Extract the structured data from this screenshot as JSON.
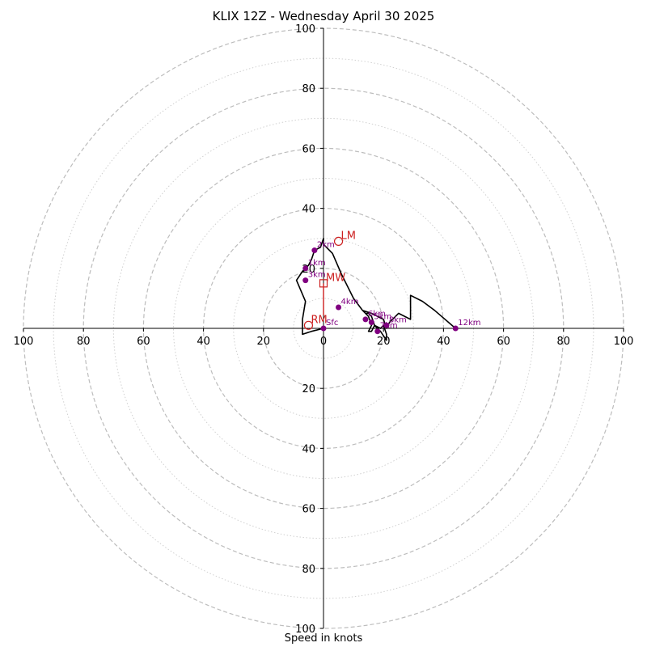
{
  "chart_data": {
    "type": "scatter",
    "title": "KLIX 12Z - Wednesday April 30 2025",
    "xlabel": "Speed in knots",
    "ylabel": "",
    "xlim": [
      -100,
      100
    ],
    "ylim": [
      -100,
      100
    ],
    "rings": {
      "major": [
        20,
        40,
        60,
        80,
        100
      ],
      "minor": [
        10,
        30,
        50,
        70,
        90
      ]
    },
    "x_tick_labels": [
      "100",
      "80",
      "60",
      "40",
      "20",
      "0",
      "20",
      "40",
      "60",
      "80",
      "100"
    ],
    "x_tick_values": [
      -100,
      -80,
      -60,
      -40,
      -20,
      0,
      20,
      40,
      60,
      80,
      100
    ],
    "y_tick_labels": [
      "100",
      "80",
      "60",
      "40",
      "20",
      "20",
      "40",
      "60",
      "80",
      "100"
    ],
    "y_tick_values": [
      100,
      80,
      60,
      40,
      20,
      -20,
      -40,
      -60,
      -80,
      -100
    ],
    "hodograph_u": [
      0,
      -4,
      -7,
      -7,
      -6,
      -9,
      -7,
      -5,
      -4,
      -3,
      -1,
      0,
      0,
      3,
      6,
      10,
      13,
      15,
      16,
      15,
      16,
      17,
      19,
      20,
      21,
      21,
      19,
      17,
      16,
      16,
      15,
      14,
      13,
      16,
      20,
      21,
      22,
      25,
      29,
      29,
      33,
      37,
      44
    ],
    "hodograph_v": [
      0,
      -1,
      -2,
      3,
      9,
      16,
      19,
      21,
      23,
      26,
      27,
      30,
      28,
      25,
      18,
      10,
      6,
      4,
      1,
      -1,
      -1,
      1,
      0,
      1,
      -2,
      -4,
      -1,
      1,
      4,
      4,
      5,
      5,
      6,
      5,
      3,
      0,
      2,
      5,
      3,
      11,
      9,
      6,
      0
    ],
    "height_markers": [
      {
        "label": "Sfc",
        "u": 0,
        "v": 0
      },
      {
        "label": "1km",
        "u": -6,
        "v": 20
      },
      {
        "label": "2km",
        "u": -3,
        "v": 26
      },
      {
        "label": "3km",
        "u": -6,
        "v": 16
      },
      {
        "label": "4km",
        "u": 5,
        "v": 7
      },
      {
        "label": "5km",
        "u": 16,
        "v": 2
      },
      {
        "label": "6km",
        "u": 14,
        "v": 3
      },
      {
        "label": "7km",
        "u": 18,
        "v": -1
      },
      {
        "label": "8km",
        "u": 21,
        "v": 1
      },
      {
        "label": "12km",
        "u": 44,
        "v": 0
      }
    ],
    "storm_motions": [
      {
        "label": "LM",
        "marker": "circle",
        "u": 5,
        "v": 29
      },
      {
        "label": "MW",
        "marker": "square",
        "u": 0,
        "v": 15
      },
      {
        "label": "RM",
        "marker": "circle",
        "u": -5,
        "v": 1
      }
    ],
    "colors": {
      "hodograph": "#000000",
      "height_marker": "#800080",
      "storm_motion": "#cc1f1f",
      "major_ring": "#bdbdbd",
      "minor_ring": "#d0d0d0",
      "axes": "#000000"
    }
  }
}
